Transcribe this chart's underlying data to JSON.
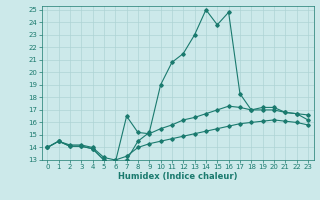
{
  "x": [
    0,
    1,
    2,
    3,
    4,
    5,
    6,
    7,
    8,
    9,
    10,
    11,
    12,
    13,
    14,
    15,
    16,
    17,
    18,
    19,
    20,
    21,
    22,
    23
  ],
  "line_main": [
    14.0,
    14.5,
    14.1,
    14.1,
    13.9,
    13.0,
    12.8,
    13.0,
    14.5,
    15.2,
    19.0,
    20.8,
    21.5,
    23.0,
    25.0,
    23.8,
    24.8,
    18.3,
    17.0,
    17.2,
    17.2,
    16.8,
    16.7,
    16.6
  ],
  "line_upper": [
    14.0,
    14.5,
    14.1,
    14.1,
    13.9,
    13.0,
    12.8,
    16.5,
    15.2,
    15.1,
    15.5,
    15.8,
    16.2,
    16.4,
    16.7,
    17.0,
    17.3,
    17.2,
    17.0,
    17.0,
    17.0,
    16.8,
    16.7,
    16.2
  ],
  "line_lower": [
    14.0,
    14.5,
    14.2,
    14.2,
    14.0,
    13.2,
    13.0,
    13.3,
    14.0,
    14.3,
    14.5,
    14.7,
    14.9,
    15.1,
    15.3,
    15.5,
    15.7,
    15.9,
    16.0,
    16.1,
    16.2,
    16.1,
    16.0,
    15.8
  ],
  "color": "#1a7a6e",
  "bg_color": "#cce9ea",
  "grid_color": "#aed4d5",
  "ylim_min": 13,
  "ylim_max": 25,
  "xlim_min": 0,
  "xlim_max": 23,
  "xlabel": "Humidex (Indice chaleur)",
  "yticks": [
    13,
    14,
    15,
    16,
    17,
    18,
    19,
    20,
    21,
    22,
    23,
    24,
    25
  ],
  "xticks": [
    0,
    1,
    2,
    3,
    4,
    5,
    6,
    7,
    8,
    9,
    10,
    11,
    12,
    13,
    14,
    15,
    16,
    17,
    18,
    19,
    20,
    21,
    22,
    23
  ],
  "tick_fontsize": 5,
  "xlabel_fontsize": 6
}
